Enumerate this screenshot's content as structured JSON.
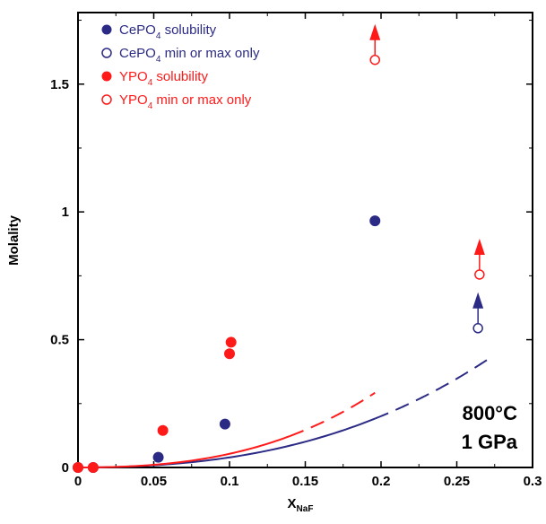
{
  "chart_data": {
    "type": "scatter",
    "title": "",
    "xlabel": "X",
    "xlabel_sub": "NaF",
    "ylabel": "Molality",
    "xlim": [
      0,
      0.3
    ],
    "ylim": [
      0,
      1.78
    ],
    "x_ticks": [
      0,
      0.05,
      0.1,
      0.15,
      0.2,
      0.25,
      0.3
    ],
    "x_tick_labels": [
      "0",
      "0.05",
      "0.1",
      "0.15",
      "0.2",
      "0.25",
      "0.3"
    ],
    "y_ticks": [
      0,
      0.5,
      1,
      1.5
    ],
    "y_tick_labels": [
      "0",
      "0.5",
      "1",
      "1.5"
    ],
    "grid": false,
    "legend_position": "top-left",
    "annotation": [
      "800°C",
      "1 GPa"
    ],
    "series": [
      {
        "name": "CePO4 solubility",
        "label_main": "CePO",
        "label_sub": "4",
        "label_rest": " solubility",
        "color": "#2b2a85",
        "marker": "filled-circle",
        "points": [
          [
            0.0,
            0.0
          ],
          [
            0.01,
            0.0
          ],
          [
            0.053,
            0.04
          ],
          [
            0.097,
            0.17
          ],
          [
            0.196,
            0.965
          ]
        ]
      },
      {
        "name": "CePO4 min or max only",
        "label_main": "CePO",
        "label_sub": "4",
        "label_rest": " min or max only",
        "color": "#2b2a85",
        "marker": "open-circle",
        "arrow": "up",
        "points": [
          [
            0.264,
            0.545
          ]
        ]
      },
      {
        "name": "YPO4 solubility",
        "label_main": "YPO",
        "label_sub": "4",
        "label_rest": " solubility",
        "color": "#ff1a1a",
        "marker": "filled-circle",
        "points": [
          [
            0.0,
            0.0
          ],
          [
            0.01,
            0.0
          ],
          [
            0.056,
            0.145
          ],
          [
            0.1,
            0.445
          ],
          [
            0.101,
            0.49
          ]
        ]
      },
      {
        "name": "YPO4 min or max only",
        "label_main": "YPO",
        "label_sub": "4",
        "label_rest": " min or max only",
        "color": "#ff1a1a",
        "marker": "open-circle",
        "arrow": "up",
        "points": [
          [
            0.196,
            1.595
          ],
          [
            0.265,
            0.755
          ]
        ]
      }
    ],
    "fit_curves": [
      {
        "color": "#2b2a85",
        "solid_range": [
          0.0,
          0.196
        ],
        "dashed_range": [
          0.196,
          0.27
        ],
        "coef": [
          0.0,
          2.86,
          10.8
        ]
      },
      {
        "color": "#ff1a1a",
        "solid_range": [
          0.0,
          0.14
        ],
        "dashed_range": [
          0.14,
          0.196
        ],
        "coef": [
          0.0,
          3.0,
          23.5
        ]
      }
    ]
  }
}
